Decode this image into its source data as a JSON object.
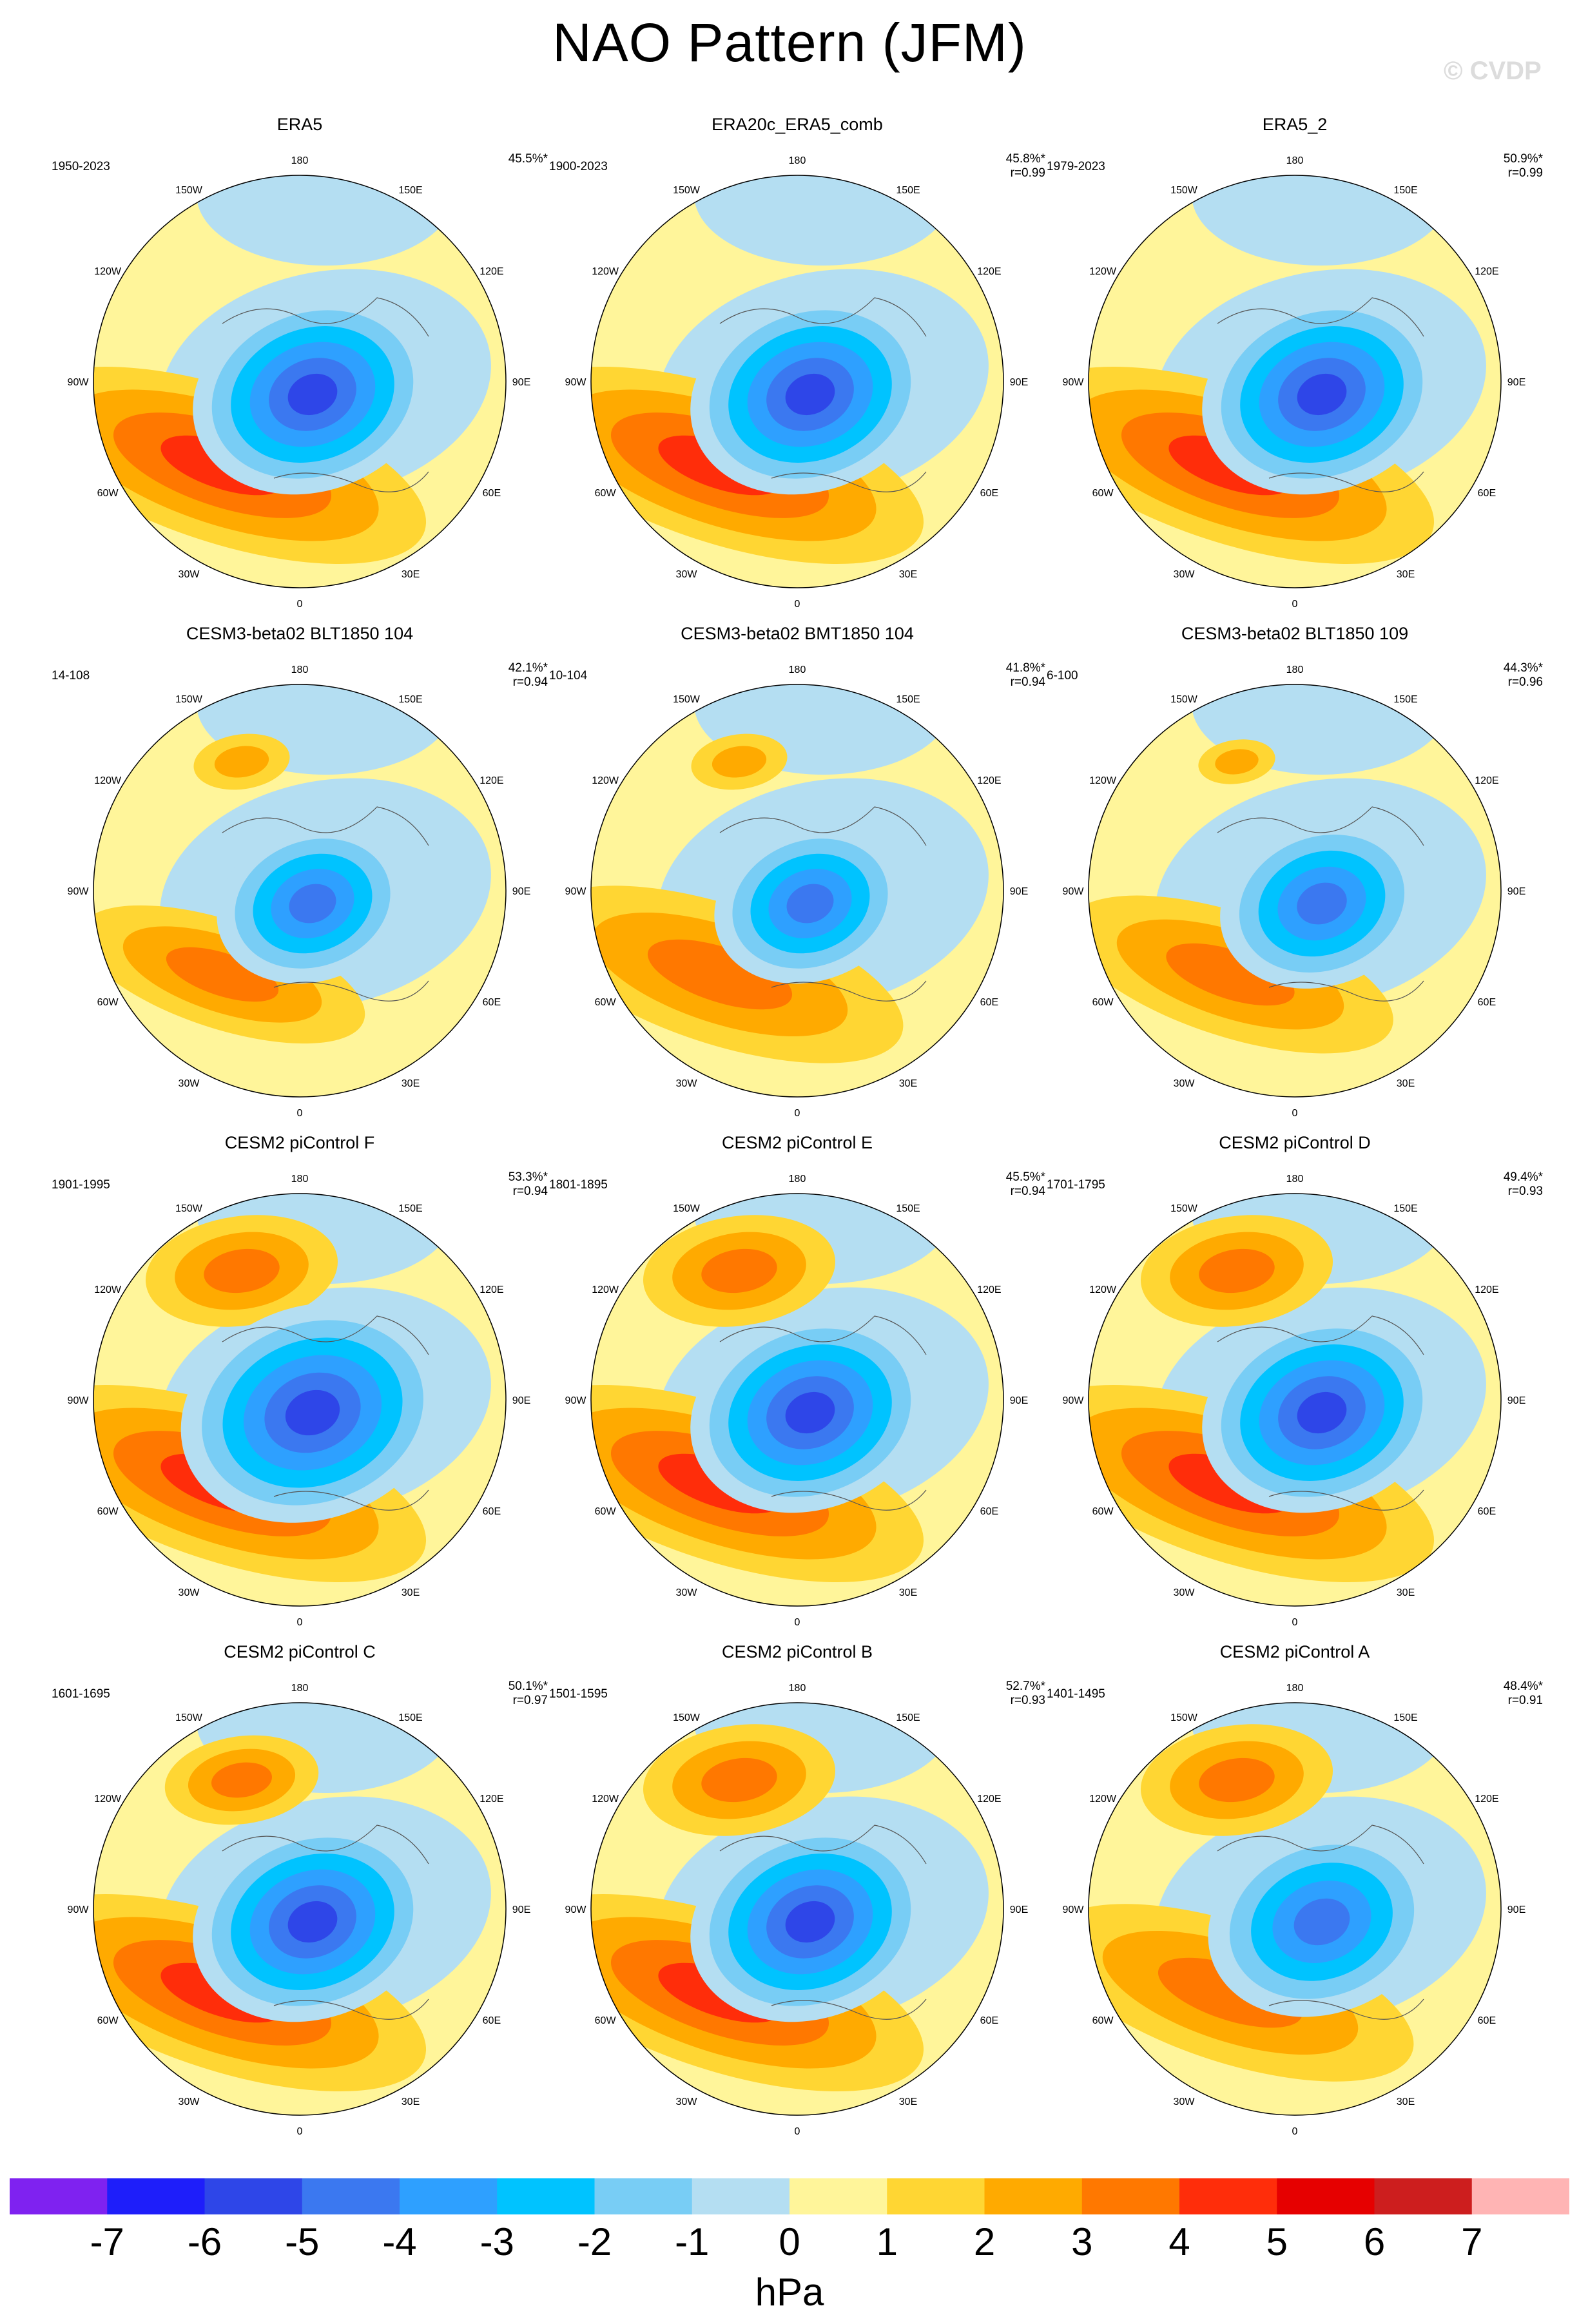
{
  "title": "NAO Pattern (JFM)",
  "watermark": "© CVDP",
  "chart_data": {
    "type": "polar-contour-maps",
    "projection": "North Polar Stereographic",
    "variable": "Sea level pressure anomaly",
    "units": "hPa",
    "longitude_labels": [
      "180",
      "150E",
      "120E",
      "90E",
      "60E",
      "30E",
      "0",
      "30W",
      "60W",
      "90W",
      "120W",
      "150W"
    ],
    "colorbar": {
      "ticks": [
        "-7",
        "-6",
        "-5",
        "-4",
        "-3",
        "-2",
        "-1",
        "0",
        "1",
        "2",
        "3",
        "4",
        "5",
        "6",
        "7"
      ],
      "colors": [
        "#7f22f0",
        "#1e1efa",
        "#2e46e8",
        "#3b78f0",
        "#2ea0ff",
        "#00c3ff",
        "#78cdf5",
        "#b4def2",
        "#fff59a",
        "#ffd633",
        "#ffaa00",
        "#ff7800",
        "#ff2d0a",
        "#e60000",
        "#cd1e1e",
        "#ffb4b4"
      ],
      "units": "hPa"
    },
    "panels": [
      {
        "title": "ERA5",
        "years": "1950-2023",
        "pct": "45.5%*",
        "r": "",
        "pattern": {
          "s": 1.0,
          "lowShift": 0,
          "arctic": 1,
          "azores": 1,
          "npac": 0
        }
      },
      {
        "title": "ERA20c_ERA5_comb",
        "years": "1900-2023",
        "pct": "45.8%*",
        "r": "r=0.99",
        "pattern": {
          "s": 1.0,
          "lowShift": 0,
          "arctic": 1,
          "azores": 1,
          "npac": 0
        }
      },
      {
        "title": "ERA5_2",
        "years": "1979-2023",
        "pct": "50.9%*",
        "r": "r=0.99",
        "pattern": {
          "s": 1.0,
          "lowShift": 1,
          "arctic": 1,
          "azores": 1,
          "npac": 0
        }
      },
      {
        "title": "CESM3-beta02 BLT1850 104",
        "years": "14-108",
        "pct": "42.1%*",
        "r": "r=0.94",
        "pattern": {
          "s": 0.8,
          "lowShift": 0,
          "arctic": 1,
          "azores": 0.7,
          "npac": 0.5
        }
      },
      {
        "title": "CESM3-beta02 BMT1850 104",
        "years": "10-104",
        "pct": "41.8%*",
        "r": "r=0.94",
        "pattern": {
          "s": 0.8,
          "lowShift": 0,
          "arctic": 1,
          "azores": 0.9,
          "npac": 0.5
        }
      },
      {
        "title": "CESM3-beta02 BLT1850 109",
        "years": "6-100",
        "pct": "44.3%*",
        "r": "r=0.96",
        "pattern": {
          "s": 0.85,
          "lowShift": 1,
          "arctic": 1,
          "azores": 0.8,
          "npac": 0.4
        }
      },
      {
        "title": "CESM2 piControl F",
        "years": "1901-1995",
        "pct": "53.3%*",
        "r": "r=0.94",
        "pattern": {
          "s": 1.1,
          "lowShift": 0,
          "arctic": 1,
          "azores": 1,
          "npac": 1
        }
      },
      {
        "title": "CESM2 piControl E",
        "years": "1801-1895",
        "pct": "45.5%*",
        "r": "r=0.94",
        "pattern": {
          "s": 1.0,
          "lowShift": 0,
          "arctic": 1,
          "azores": 1,
          "npac": 1
        }
      },
      {
        "title": "CESM2 piControl D",
        "years": "1701-1795",
        "pct": "49.4%*",
        "r": "r=0.93",
        "pattern": {
          "s": 1.0,
          "lowShift": 1,
          "arctic": 1,
          "azores": 1,
          "npac": 1
        }
      },
      {
        "title": "CESM2 piControl C",
        "years": "1601-1695",
        "pct": "50.1%*",
        "r": "r=0.97",
        "pattern": {
          "s": 1.0,
          "lowShift": 0,
          "arctic": 1,
          "azores": 1,
          "npac": 0.8
        }
      },
      {
        "title": "CESM2 piControl B",
        "years": "1501-1595",
        "pct": "52.7%*",
        "r": "r=0.93",
        "pattern": {
          "s": 1.0,
          "lowShift": 0,
          "arctic": 1,
          "azores": 1,
          "npac": 1
        }
      },
      {
        "title": "CESM2 piControl A",
        "years": "1401-1495",
        "pct": "48.4%*",
        "r": "r=0.91",
        "pattern": {
          "s": 0.95,
          "lowShift": 1,
          "arctic": 1,
          "azores": 0.9,
          "npac": 1
        }
      }
    ]
  }
}
